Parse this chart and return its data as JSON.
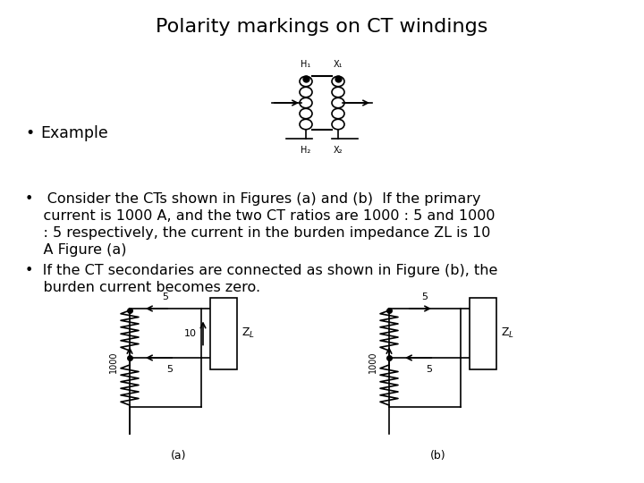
{
  "title": "Polarity markings on CT windings",
  "title_fontsize": 16,
  "background_color": "#ffffff",
  "text_color": "#000000",
  "bullet1": "Example",
  "b2l1": "•   Consider the CTs shown in Figures (a) and (b)  If the primary",
  "b2l2": "    current is 1000 A, and the two CT ratios are 1000 : 5 and 1000",
  "b2l3": "    : 5 respectively, the current in the burden impedance ZL is 10",
  "b2l4": "    A Figure (a)",
  "b3l1": "•  If the CT secondaries are connected as shown in Figure (b), the",
  "b3l2": "    burden current becomes zero.",
  "font_size_body": 11.5,
  "fig_width": 7.2,
  "fig_height": 5.4
}
